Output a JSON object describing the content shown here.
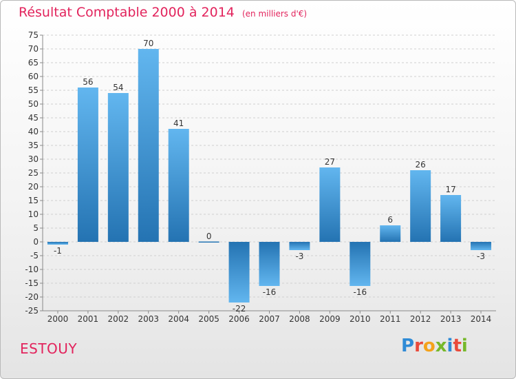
{
  "header": {
    "title": "Résultat Comptable 2000 à 2014",
    "subtitle": "(en milliers d'€)"
  },
  "footer": {
    "commune": "ESTOUY",
    "logo_letters": [
      "P",
      "r",
      "o",
      "x",
      "i",
      "t",
      "i"
    ],
    "logo_colors": [
      "#2f8bd6",
      "#e94a3b",
      "#f4a21b",
      "#76b82a",
      "#2f8bd6",
      "#e94a3b",
      "#76b82a"
    ]
  },
  "chart_data": {
    "type": "bar",
    "title": "Résultat Comptable 2000 à 2014",
    "subtitle": "(en milliers d'€)",
    "categories": [
      "2000",
      "2001",
      "2002",
      "2003",
      "2004",
      "2005",
      "2006",
      "2007",
      "2008",
      "2009",
      "2010",
      "2011",
      "2012",
      "2013",
      "2014"
    ],
    "values": [
      -1,
      56,
      54,
      70,
      41,
      0,
      -22,
      -16,
      -3,
      27,
      -16,
      6,
      26,
      17,
      -3
    ],
    "ylim": [
      -25,
      75
    ],
    "ytick_step": 5,
    "grid": "horizontal dashed",
    "colors": {
      "bar_light": "#5fb4ee",
      "bar_dark": "#2475b4",
      "grid": "#cfcfcf",
      "axis": "#888888"
    }
  }
}
